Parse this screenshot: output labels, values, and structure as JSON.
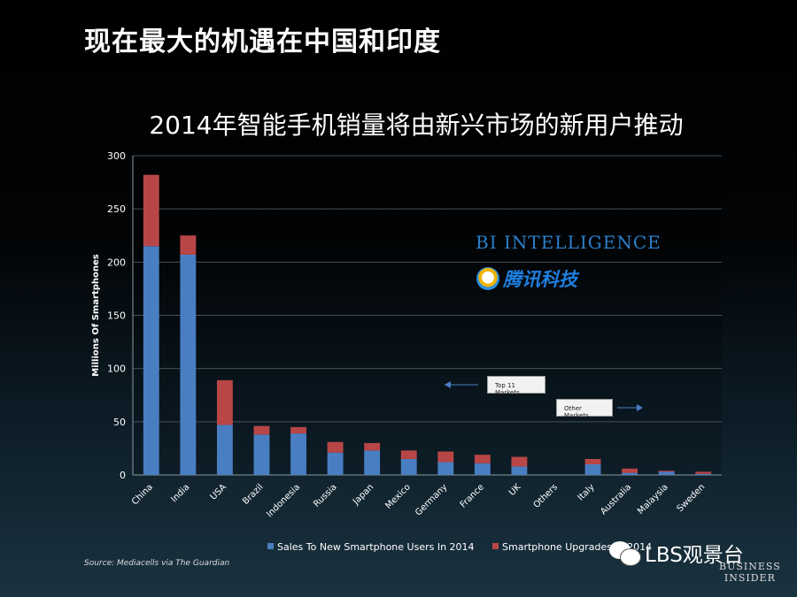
{
  "slide_title": "现在最大的机遇在中国和印度",
  "chart_data": {
    "type": "bar",
    "stacked": true,
    "title": "2014年智能手机销量将由新兴市场的新用户推动",
    "xlabel": "",
    "ylabel": "Millions Of Smartphones",
    "ylim": [
      0,
      300
    ],
    "yticks": [
      0,
      50,
      100,
      150,
      200,
      250,
      300
    ],
    "grid": true,
    "legend": "bottom",
    "categories": [
      "China",
      "India",
      "USA",
      "Brazil",
      "Indonesia",
      "Russia",
      "Japan",
      "Mexico",
      "Germany",
      "France",
      "UK",
      "Others",
      "Italy",
      "Australia",
      "Malaysia",
      "Sweden"
    ],
    "series": [
      {
        "name": "Sales To New Smartphone Users In 2014",
        "color": "#4a7ec2",
        "values": [
          215,
          207,
          47,
          38,
          39,
          21,
          23,
          15,
          12,
          11,
          8,
          0,
          10,
          2,
          3,
          1
        ]
      },
      {
        "name": "Smartphone Upgrades In 2014",
        "color": "#b94646",
        "values": [
          67,
          18,
          42,
          8,
          6,
          10,
          7,
          8,
          10,
          8,
          9,
          0,
          5,
          4,
          1,
          2
        ]
      }
    ],
    "annotations": [
      "Top 11 Markets",
      "Other Markets"
    ]
  },
  "logos": {
    "bi_intelligence": "BI INTELLIGENCE",
    "tencent_tech": "腾讯科技"
  },
  "source": "Source: Mediacells via The Guardian",
  "watermark": "LBS观景台",
  "publisher_line1": "BUSINESS",
  "publisher_line2": "INSIDER"
}
